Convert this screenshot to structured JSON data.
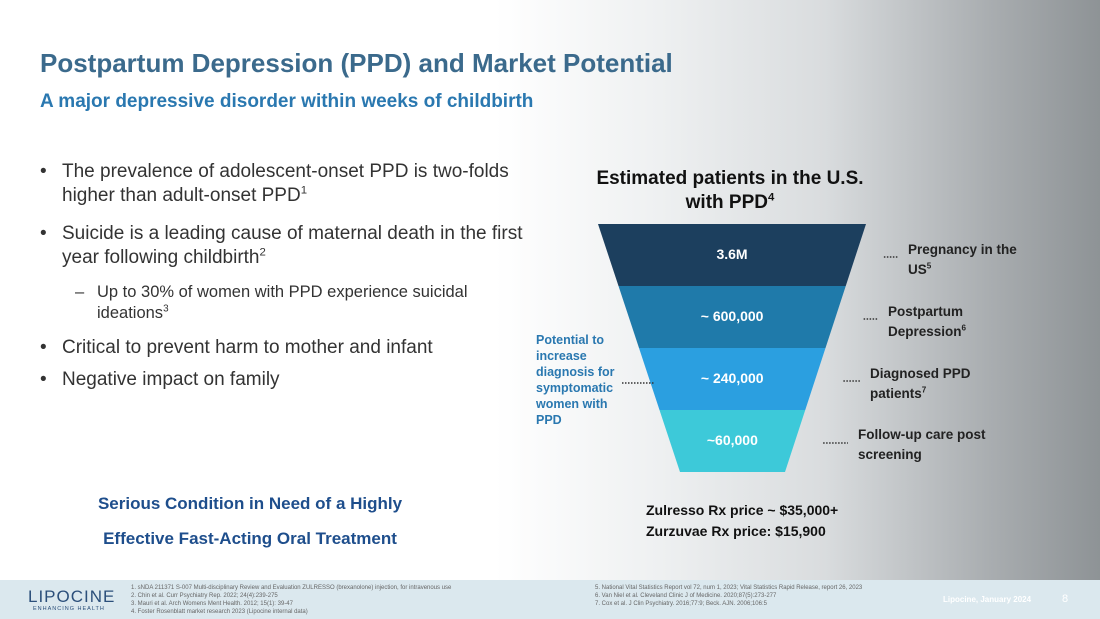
{
  "header": {
    "title": "Postpartum Depression (PPD) and Market Potential",
    "subtitle": "A major depressive disorder within weeks of childbirth"
  },
  "bullets": [
    {
      "text": "The prevalence of adolescent-onset PPD is two-folds higher than adult-onset PPD",
      "sup": "1",
      "level": 1
    },
    {
      "text": "Suicide is a leading cause of maternal death in the first year following childbirth",
      "sup": "2",
      "level": 1
    },
    {
      "text": "Up to 30% of women with PPD experience suicidal ideations",
      "sup": "3",
      "level": 2
    },
    {
      "text": "Critical to prevent harm to mother and infant",
      "level": 1
    },
    {
      "text": "Negative impact on family",
      "level": 1
    }
  ],
  "callout": [
    "Serious Condition in Need of a Highly",
    "Effective Fast-Acting Oral Treatment"
  ],
  "funnel": {
    "title": "Estimated patients in the U.S. with PPD",
    "title_sup": "4",
    "levels": [
      {
        "label": "3.6M",
        "note": "Pregnancy in the US",
        "note_sup": "5"
      },
      {
        "label": "~ 600,000",
        "note": "Postpartum Depression",
        "note_sup": "6"
      },
      {
        "label": "~ 240,000",
        "note": "Diagnosed PPD patients",
        "note_sup": "7"
      },
      {
        "label": "~60,000",
        "note": "Follow-up care post screening"
      }
    ],
    "side_note": "Potential to increase diagnosis for symptomatic women with PPD"
  },
  "prices": [
    "Zulresso Rx price ~ $35,000+",
    "Zurzuvae Rx price: $15,900"
  ],
  "footer": {
    "logo": "LIPOCINE",
    "tagline": "ENHANCING HEALTH",
    "refs_left": [
      "1. sNDA 211371 S-007 Multi-disciplinary Review and Evaluation ZULRESSO (brexanolone) injection, for intravenous use",
      "2. Chin et al. Curr Psychiatry Rep. 2022; 24(4):239-275",
      "3. Mauri et al. Arch Womens Ment Health. 2012; 15(1): 39-47",
      "4. Foster Rosenblatt market research 2023 (Lipocine internal data)"
    ],
    "refs_right": [
      "5. National Vital Statistics Report vol 72, num 1, 2023; Vital Statistics Rapid Release, report 26, 2023",
      "6. Van Niel et al. Cleveland Clinic J of Medicine. 2020;87(5):273-277",
      "7. Cox et al. J Clin Psychiatry. 2016;77:9; Beck. AJN. 2006;106:5"
    ],
    "company_date": "Lipocine, January 2024",
    "page": "8"
  }
}
